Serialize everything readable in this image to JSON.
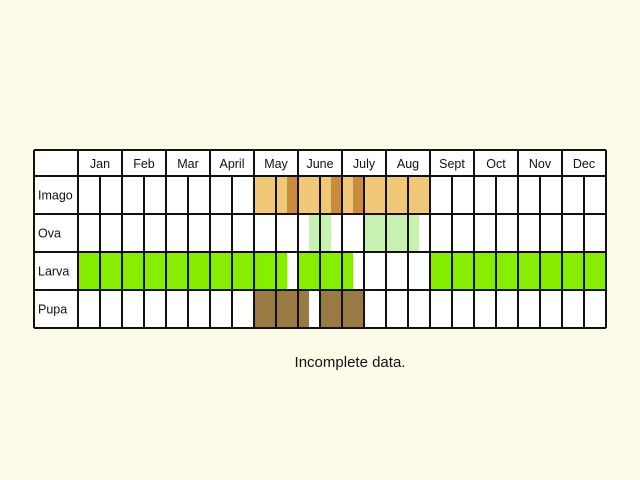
{
  "months": [
    "Jan",
    "Feb",
    "Mar",
    "April",
    "May",
    "June",
    "July",
    "Aug",
    "Sept",
    "Oct",
    "Nov",
    "Dec"
  ],
  "stages": [
    {
      "label": "Imago",
      "color": "#f0c878",
      "accent": "#c88c3c",
      "active_quarters": [
        16,
        17,
        18,
        19,
        20,
        21,
        22,
        23,
        24,
        25,
        26,
        27,
        28,
        29,
        30,
        31
      ],
      "accent_quarters": [
        19,
        23,
        25
      ]
    },
    {
      "label": "Ova",
      "color": "#c8f0b0",
      "accent": "#c8f0b0",
      "active_quarters": [
        21,
        22,
        26,
        27,
        28,
        29,
        30
      ],
      "accent_quarters": []
    },
    {
      "label": "Larva",
      "color": "#88ee00",
      "accent": "#88ee00",
      "active_quarters": [
        0,
        1,
        2,
        3,
        4,
        5,
        6,
        7,
        8,
        9,
        10,
        11,
        12,
        13,
        14,
        15,
        16,
        17,
        18,
        20,
        21,
        22,
        23,
        24,
        32,
        33,
        34,
        35,
        36,
        37,
        38,
        39,
        40,
        41,
        42,
        43,
        44,
        45,
        46,
        47
      ],
      "accent_quarters": []
    },
    {
      "label": "Pupa",
      "color": "#9a7a44",
      "accent": "#9a7a44",
      "active_quarters": [
        16,
        17,
        18,
        19,
        20,
        22,
        23,
        24,
        25
      ],
      "accent_quarters": []
    }
  ],
  "note": "Incomplete data."
}
